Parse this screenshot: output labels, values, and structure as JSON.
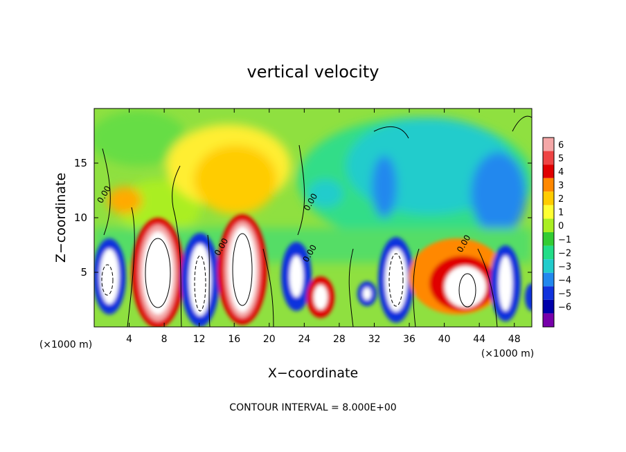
{
  "chart_data": {
    "type": "heatmap",
    "title": "vertical velocity",
    "xlabel": "X−coordinate",
    "ylabel": "Z−coordinate",
    "x_unit_left": "(×1000 m)",
    "x_unit_right": "(×1000 m)",
    "footer": "CONTOUR INTERVAL = 8.000E+00",
    "xlim": [
      0,
      50
    ],
    "ylim": [
      0,
      20
    ],
    "x_ticks": [
      4,
      8,
      12,
      16,
      20,
      24,
      28,
      32,
      36,
      40,
      44,
      48
    ],
    "y_ticks": [
      5,
      10,
      15
    ],
    "contour_labels": [
      {
        "text": "0.00",
        "x": 1.4,
        "y": 12.0
      },
      {
        "text": "0.00",
        "x": 14.8,
        "y": 7.2
      },
      {
        "text": "0.00",
        "x": 25.0,
        "y": 11.3
      },
      {
        "text": "0.00",
        "x": 24.9,
        "y": 6.6
      },
      {
        "text": "0.00",
        "x": 42.5,
        "y": 7.5
      }
    ],
    "colorbar": {
      "levels": [
        6,
        5,
        4,
        3,
        2,
        1,
        0,
        -1,
        -2,
        -3,
        -4,
        -5,
        -6
      ],
      "colors": [
        "#f4a7a7",
        "#ee4444",
        "#e00000",
        "#ff8800",
        "#ffcc00",
        "#ffff33",
        "#aaee22",
        "#33cc33",
        "#22dd88",
        "#22cccc",
        "#2288ee",
        "#1133dd",
        "#0000aa",
        "#7700aa"
      ]
    },
    "cells": [
      {
        "x": 0.9,
        "y": 4.6,
        "w": 0.8,
        "h": 2.6,
        "v": -6
      },
      {
        "x": 7.0,
        "y": 5.0,
        "w": 1.7,
        "h": 4.1,
        "v": 6
      },
      {
        "x": 12.0,
        "y": 3.7,
        "w": 0.9,
        "h": 2.6,
        "v": -6
      },
      {
        "x": 17.6,
        "y": 5.2,
        "w": 1.4,
        "h": 3.9,
        "v": 6
      },
      {
        "x": 23.2,
        "y": 4.8,
        "w": 0.6,
        "h": 1.6,
        "v": -6
      },
      {
        "x": 26.0,
        "y": 2.6,
        "w": 1.0,
        "h": 1.5,
        "v": 5
      },
      {
        "x": 31.0,
        "y": 3.0,
        "w": 0.6,
        "h": 0.8,
        "v": -6
      },
      {
        "x": 34.4,
        "y": 4.7,
        "w": 1.1,
        "h": 2.7,
        "v": -6
      },
      {
        "x": 42.2,
        "y": 4.2,
        "w": 3.0,
        "h": 2.2,
        "v": 6
      },
      {
        "x": 46.6,
        "y": 4.6,
        "w": 0.7,
        "h": 2.4,
        "v": -6
      },
      {
        "x": 15.0,
        "y": 13.5,
        "w": 5.0,
        "h": 4.5,
        "v": 3
      },
      {
        "x": 42.0,
        "y": 13.5,
        "w": 2.0,
        "h": 4.0,
        "v": -3
      },
      {
        "x": 34.0,
        "y": 13.0,
        "w": 1.2,
        "h": 3.5,
        "v": -3
      }
    ]
  }
}
